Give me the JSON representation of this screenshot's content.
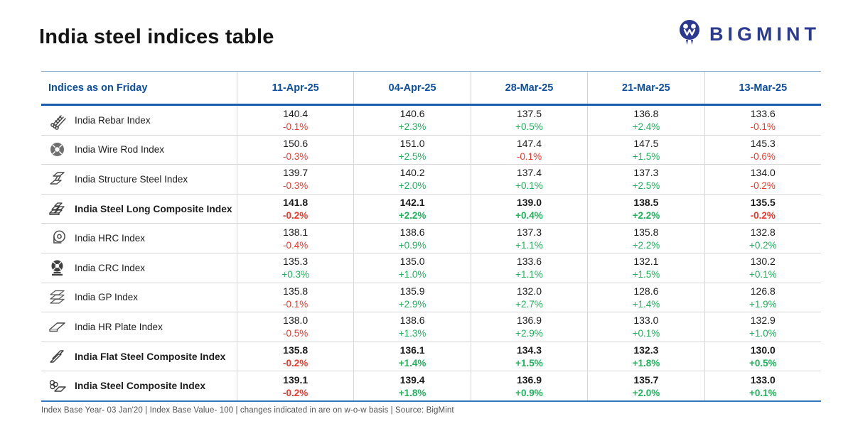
{
  "page_title": "India steel indices table",
  "logo": {
    "text": "BIGMINT",
    "icon": "bigmint-logo-icon",
    "color": "#2b3990"
  },
  "colors": {
    "header_blue": "#0d4ea3",
    "header_rule_dark": "#1b5bab",
    "header_rule_light": "#8fa9cf",
    "bottom_rule": "#3a76bf",
    "positive_green": "#1eb35a",
    "negative_red": "#f0372c",
    "row_divider": "#d8d8d8",
    "text_dark": "#1c1c1c",
    "footnote_gray": "#545454"
  },
  "footnote": "Index Base Year- 03 Jan'20 | Index Base Value- 100 | changes indicated in are on w-o-w basis | Source: BigMint",
  "chart_data": {
    "type": "table",
    "title": "India steel indices table",
    "header_label": "Indices as on Friday",
    "dates": [
      "11-Apr-25",
      "04-Apr-25",
      "28-Mar-25",
      "21-Mar-25",
      "13-Mar-25"
    ],
    "change_basis": "w-o-w",
    "rows": [
      {
        "icon": "rebar-icon",
        "label": "India Rebar Index",
        "bold": false,
        "cells": [
          {
            "value": "140.4",
            "change": "-0.1%"
          },
          {
            "value": "140.6",
            "change": "+2.3%"
          },
          {
            "value": "137.5",
            "change": "+0.5%"
          },
          {
            "value": "136.8",
            "change": "+2.4%"
          },
          {
            "value": "133.6",
            "change": "-0.1%"
          }
        ]
      },
      {
        "icon": "wire-rod-icon",
        "label": "India Wire Rod Index",
        "bold": false,
        "cells": [
          {
            "value": "150.6",
            "change": "-0.3%"
          },
          {
            "value": "151.0",
            "change": "+2.5%"
          },
          {
            "value": "147.4",
            "change": "-0.1%"
          },
          {
            "value": "147.5",
            "change": "+1.5%"
          },
          {
            "value": "145.3",
            "change": "-0.6%"
          }
        ]
      },
      {
        "icon": "structure-steel-icon",
        "label": "India Structure Steel Index",
        "bold": false,
        "cells": [
          {
            "value": "139.7",
            "change": "-0.3%"
          },
          {
            "value": "140.2",
            "change": "+2.0%"
          },
          {
            "value": "137.4",
            "change": "+0.1%"
          },
          {
            "value": "137.3",
            "change": "+2.5%"
          },
          {
            "value": "134.0",
            "change": "-0.2%"
          }
        ]
      },
      {
        "icon": "steel-long-composite-icon",
        "label": "India Steel Long Composite Index",
        "bold": true,
        "cells": [
          {
            "value": "141.8",
            "change": "-0.2%"
          },
          {
            "value": "142.1",
            "change": "+2.2%"
          },
          {
            "value": "139.0",
            "change": "+0.4%"
          },
          {
            "value": "138.5",
            "change": "+2.2%"
          },
          {
            "value": "135.5",
            "change": "-0.2%"
          }
        ]
      },
      {
        "icon": "hrc-coil-icon",
        "label": "India HRC Index",
        "bold": false,
        "cells": [
          {
            "value": "138.1",
            "change": "-0.4%"
          },
          {
            "value": "138.6",
            "change": "+0.9%"
          },
          {
            "value": "137.3",
            "change": "+1.1%"
          },
          {
            "value": "135.8",
            "change": "+2.2%"
          },
          {
            "value": "132.8",
            "change": "+0.2%"
          }
        ]
      },
      {
        "icon": "crc-coil-icon",
        "label": "India CRC Index",
        "bold": false,
        "cells": [
          {
            "value": "135.3",
            "change": "+0.3%"
          },
          {
            "value": "135.0",
            "change": "+1.0%"
          },
          {
            "value": "133.6",
            "change": "+1.1%"
          },
          {
            "value": "132.1",
            "change": "+1.5%"
          },
          {
            "value": "130.2",
            "change": "+0.1%"
          }
        ]
      },
      {
        "icon": "gp-sheets-icon",
        "label": "India GP Index",
        "bold": false,
        "cells": [
          {
            "value": "135.8",
            "change": "-0.1%"
          },
          {
            "value": "135.9",
            "change": "+2.9%"
          },
          {
            "value": "132.0",
            "change": "+2.7%"
          },
          {
            "value": "128.6",
            "change": "+1.4%"
          },
          {
            "value": "126.8",
            "change": "+1.9%"
          }
        ]
      },
      {
        "icon": "hr-plate-icon",
        "label": "India HR Plate Index",
        "bold": false,
        "cells": [
          {
            "value": "138.0",
            "change": "-0.5%"
          },
          {
            "value": "138.6",
            "change": "+1.3%"
          },
          {
            "value": "136.9",
            "change": "+2.9%"
          },
          {
            "value": "133.0",
            "change": "+0.1%"
          },
          {
            "value": "132.9",
            "change": "+1.0%"
          }
        ]
      },
      {
        "icon": "flat-steel-composite-icon",
        "label": "India Flat Steel Composite Index",
        "bold": true,
        "cells": [
          {
            "value": "135.8",
            "change": "-0.2%"
          },
          {
            "value": "136.1",
            "change": "+1.4%"
          },
          {
            "value": "134.3",
            "change": "+1.5%"
          },
          {
            "value": "132.3",
            "change": "+1.8%"
          },
          {
            "value": "130.0",
            "change": "+0.5%"
          }
        ]
      },
      {
        "icon": "steel-composite-icon",
        "label": "India Steel Composite Index",
        "bold": true,
        "cells": [
          {
            "value": "139.1",
            "change": "-0.2%"
          },
          {
            "value": "139.4",
            "change": "+1.8%"
          },
          {
            "value": "136.9",
            "change": "+0.9%"
          },
          {
            "value": "135.7",
            "change": "+2.0%"
          },
          {
            "value": "133.0",
            "change": "+0.1%"
          }
        ]
      }
    ]
  }
}
